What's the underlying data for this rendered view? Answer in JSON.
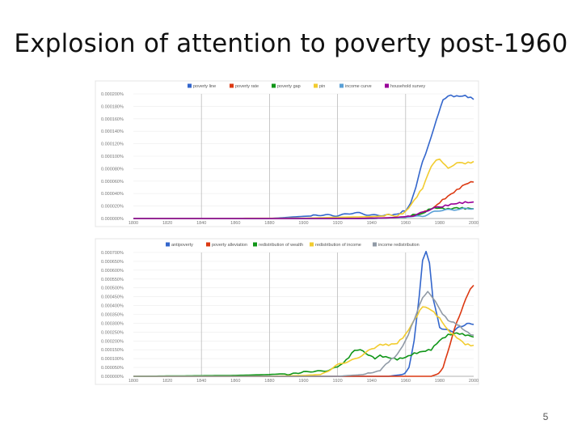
{
  "slide": {
    "title": "Explosion of attention to poverty post-1960",
    "page_number": "5"
  },
  "chart_data": [
    {
      "type": "line",
      "title": "",
      "xlabel": "",
      "ylabel": "",
      "xlim": [
        1800,
        2000
      ],
      "ylim": [
        0,
        0.0002
      ],
      "x_ticks": [
        "1800",
        "1820",
        "1840",
        "1860",
        "1880",
        "1900",
        "1920",
        "1940",
        "1960",
        "1980",
        "2000"
      ],
      "y_ticks": [
        "0.000000%",
        "0.000020%",
        "0.000040%",
        "0.000060%",
        "0.000080%",
        "0.000100%",
        "0.000120%",
        "0.000140%",
        "0.000160%",
        "0.000180%",
        "0.000200%"
      ],
      "legend_position": "top",
      "series": [
        {
          "name": "poverty line",
          "color": "#3366cc",
          "points": [
            [
              1800,
              0
            ],
            [
              1850,
              0
            ],
            [
              1880,
              0
            ],
            [
              1900,
              3.5e-06
            ],
            [
              1910,
              4.5e-06
            ],
            [
              1920,
              6e-06
            ],
            [
              1930,
              8e-06
            ],
            [
              1940,
              6.5e-06
            ],
            [
              1950,
              4.5e-06
            ],
            [
              1955,
              5.5e-06
            ],
            [
              1960,
              1.2e-05
            ],
            [
              1963,
              2.5e-05
            ],
            [
              1966,
              5e-05
            ],
            [
              1970,
              9e-05
            ],
            [
              1975,
              0.00013
            ],
            [
              1978,
              0.00016
            ],
            [
              1982,
              0.00019
            ],
            [
              1985,
              0.000198
            ],
            [
              1990,
              0.000197
            ],
            [
              1995,
              0.000198
            ],
            [
              2000,
              0.000193
            ]
          ]
        },
        {
          "name": "poverty rate",
          "color": "#dc3912",
          "points": [
            [
              1800,
              0
            ],
            [
              1900,
              0
            ],
            [
              1940,
              5e-07
            ],
            [
              1960,
              2e-06
            ],
            [
              1970,
              8e-06
            ],
            [
              1980,
              2.5e-05
            ],
            [
              1985,
              3.5e-05
            ],
            [
              1990,
              4.5e-05
            ],
            [
              1995,
              5.5e-05
            ],
            [
              2000,
              6e-05
            ]
          ]
        },
        {
          "name": "poverty gap",
          "color": "#109618",
          "points": [
            [
              1800,
              0
            ],
            [
              1940,
              0
            ],
            [
              1960,
              2e-06
            ],
            [
              1970,
              8e-06
            ],
            [
              1975,
              1.6e-05
            ],
            [
              1980,
              1.6e-05
            ],
            [
              1985,
              1.4e-05
            ],
            [
              1990,
              1.6e-05
            ],
            [
              1995,
              1.5e-05
            ],
            [
              2000,
              1.5e-05
            ]
          ]
        },
        {
          "name": "pin",
          "color": "#f2cc2f",
          "points": [
            [
              1800,
              0
            ],
            [
              1900,
              5e-07
            ],
            [
              1920,
              2e-06
            ],
            [
              1940,
              3e-06
            ],
            [
              1955,
              5e-06
            ],
            [
              1960,
              1.2e-05
            ],
            [
              1965,
              3e-05
            ],
            [
              1970,
              5e-05
            ],
            [
              1975,
              8.5e-05
            ],
            [
              1978,
              9.2e-05
            ],
            [
              1980,
              9.5e-05
            ],
            [
              1982,
              9e-05
            ],
            [
              1985,
              8e-05
            ],
            [
              1988,
              8.5e-05
            ],
            [
              1990,
              9e-05
            ],
            [
              1995,
              8.8e-05
            ],
            [
              2000,
              9e-05
            ]
          ]
        },
        {
          "name": "income curve",
          "color": "#5aa0d6",
          "points": [
            [
              1800,
              0
            ],
            [
              1940,
              0
            ],
            [
              1960,
              2e-06
            ],
            [
              1970,
              5e-06
            ],
            [
              1980,
              1.2e-05
            ],
            [
              1990,
              1.6e-05
            ],
            [
              2000,
              1.5e-05
            ]
          ]
        },
        {
          "name": "household survey",
          "color": "#990099",
          "points": [
            [
              1800,
              0
            ],
            [
              1930,
              0
            ],
            [
              1950,
              1e-06
            ],
            [
              1960,
              3e-06
            ],
            [
              1970,
              1e-05
            ],
            [
              1980,
              1.8e-05
            ],
            [
              1985,
              2.2e-05
            ],
            [
              1990,
              2.5e-05
            ],
            [
              1995,
              2.7e-05
            ],
            [
              2000,
              2.7e-05
            ]
          ]
        }
      ]
    },
    {
      "type": "line",
      "title": "",
      "xlabel": "",
      "ylabel": "",
      "xlim": [
        1800,
        2000
      ],
      "ylim": [
        0,
        0.0007
      ],
      "x_ticks": [
        "1800",
        "1820",
        "1840",
        "1860",
        "1880",
        "1900",
        "1920",
        "1940",
        "1960",
        "1980",
        "2000"
      ],
      "y_ticks": [
        "0.000000%",
        "0.000050%",
        "0.000100%",
        "0.000150%",
        "0.000200%",
        "0.000250%",
        "0.000300%",
        "0.000350%",
        "0.000400%",
        "0.000450%",
        "0.000500%",
        "0.000550%",
        "0.000600%",
        "0.000650%",
        "0.000700%"
      ],
      "legend_position": "top",
      "series": [
        {
          "name": "antipoverty",
          "color": "#3366cc",
          "points": [
            [
              1800,
              0
            ],
            [
              1950,
              0
            ],
            [
              1958,
              1e-05
            ],
            [
              1962,
              5e-05
            ],
            [
              1965,
              0.0002
            ],
            [
              1968,
              0.00045
            ],
            [
              1970,
              0.00065
            ],
            [
              1972,
              0.0007
            ],
            [
              1974,
              0.00064
            ],
            [
              1976,
              0.00045
            ],
            [
              1980,
              0.00028
            ],
            [
              1984,
              0.00026
            ],
            [
              1988,
              0.00025
            ],
            [
              1992,
              0.00028
            ],
            [
              1996,
              0.0003
            ],
            [
              2000,
              0.0003
            ]
          ]
        },
        {
          "name": "poverty alleviation",
          "color": "#dc3912",
          "points": [
            [
              1800,
              0
            ],
            [
              1975,
              0
            ],
            [
              1978,
              1e-05
            ],
            [
              1982,
              5e-05
            ],
            [
              1986,
              0.00018
            ],
            [
              1990,
              0.0003
            ],
            [
              1994,
              0.0004
            ],
            [
              1998,
              0.0005
            ],
            [
              2000,
              0.00052
            ]
          ]
        },
        {
          "name": "redistribution of wealth",
          "color": "#109618",
          "points": [
            [
              1800,
              0
            ],
            [
              1860,
              5e-06
            ],
            [
              1880,
              1e-05
            ],
            [
              1900,
              2e-05
            ],
            [
              1910,
              3e-05
            ],
            [
              1920,
              5e-05
            ],
            [
              1925,
              9e-05
            ],
            [
              1930,
              0.00015
            ],
            [
              1935,
              0.00015
            ],
            [
              1938,
              0.00012
            ],
            [
              1942,
              0.0001
            ],
            [
              1945,
              0.00012
            ],
            [
              1950,
              0.00011
            ],
            [
              1955,
              0.0001
            ],
            [
              1960,
              0.00011
            ],
            [
              1965,
              0.00013
            ],
            [
              1970,
              0.00014
            ],
            [
              1975,
              0.00015
            ],
            [
              1980,
              0.0002
            ],
            [
              1985,
              0.00023
            ],
            [
              1990,
              0.00024
            ],
            [
              1995,
              0.00023
            ],
            [
              2000,
              0.00022
            ]
          ]
        },
        {
          "name": "redistribution of income",
          "color": "#f2cc2f",
          "points": [
            [
              1800,
              0
            ],
            [
              1880,
              0
            ],
            [
              1900,
              5e-06
            ],
            [
              1910,
              1e-05
            ],
            [
              1920,
              6e-05
            ],
            [
              1930,
              0.0001
            ],
            [
              1940,
              0.00015
            ],
            [
              1945,
              0.00018
            ],
            [
              1950,
              0.00018
            ],
            [
              1955,
              0.00019
            ],
            [
              1960,
              0.00024
            ],
            [
              1965,
              0.00032
            ],
            [
              1970,
              0.0004
            ],
            [
              1975,
              0.00038
            ],
            [
              1980,
              0.00033
            ],
            [
              1985,
              0.00026
            ],
            [
              1990,
              0.00022
            ],
            [
              1995,
              0.00018
            ],
            [
              2000,
              0.00017
            ]
          ]
        },
        {
          "name": "income redistribution",
          "color": "#909aa6",
          "points": [
            [
              1800,
              0
            ],
            [
              1920,
              0
            ],
            [
              1935,
              1e-05
            ],
            [
              1945,
              3e-05
            ],
            [
              1950,
              8e-05
            ],
            [
              1955,
              0.00012
            ],
            [
              1960,
              0.0002
            ],
            [
              1965,
              0.00032
            ],
            [
              1970,
              0.00045
            ],
            [
              1973,
              0.00048
            ],
            [
              1976,
              0.00044
            ],
            [
              1980,
              0.00038
            ],
            [
              1985,
              0.00032
            ],
            [
              1990,
              0.0003
            ],
            [
              1995,
              0.00026
            ],
            [
              2000,
              0.00023
            ]
          ]
        }
      ]
    }
  ]
}
